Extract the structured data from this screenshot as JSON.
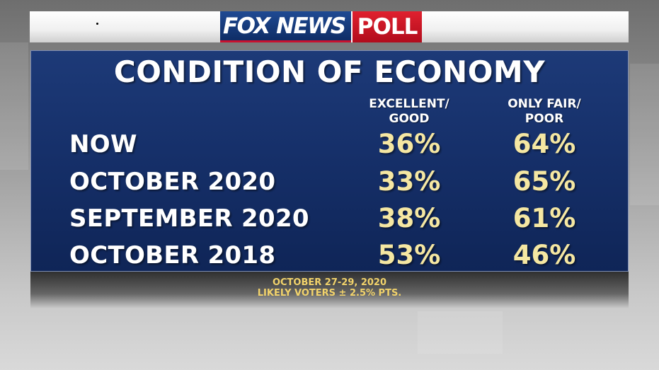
{
  "logo": {
    "brand": "FOX NEWS",
    "badge": "POLL"
  },
  "colors": {
    "panel": "#16306a",
    "value_text": "#f5e7a2",
    "footer_text": "#f2d36b",
    "logo_red": "#d21e2b",
    "logo_blue": "#1f4a93"
  },
  "chart_data": {
    "type": "table",
    "title": "CONDITION OF ECONOMY",
    "columns": [
      "EXCELLENT/\nGOOD",
      "ONLY FAIR/\nPOOR"
    ],
    "rows": [
      {
        "label": "NOW",
        "values": [
          "36%",
          "64%"
        ]
      },
      {
        "label": "OCTOBER 2020",
        "values": [
          "33%",
          "65%"
        ]
      },
      {
        "label": "SEPTEMBER 2020",
        "values": [
          "38%",
          "61%"
        ]
      },
      {
        "label": "OCTOBER 2018",
        "values": [
          "53%",
          "46%"
        ]
      }
    ],
    "footnote": [
      "OCTOBER 27-29, 2020",
      "LIKELY VOTERS ± 2.5% PTS."
    ]
  }
}
